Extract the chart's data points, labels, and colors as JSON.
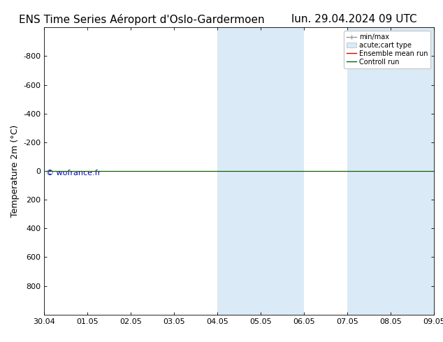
{
  "title_left": "ENS Time Series Aéroport d'Oslo-Gardermoen",
  "title_right": "lun. 29.04.2024 09 UTC",
  "ylabel": "Temperature 2m (°C)",
  "watermark": "© wofrance.fr",
  "xtick_labels": [
    "30.04",
    "01.05",
    "02.05",
    "03.05",
    "04.05",
    "05.05",
    "06.05",
    "07.05",
    "08.05",
    "09.05"
  ],
  "ylim": [
    -1000,
    1000
  ],
  "yticks": [
    -800,
    -600,
    -400,
    -200,
    0,
    200,
    400,
    600,
    800
  ],
  "shaded_bands": [
    {
      "xstart": 4.0,
      "xend": 5.0,
      "color": "#daeaf6"
    },
    {
      "xstart": 5.0,
      "xend": 6.0,
      "color": "#daeaf6"
    },
    {
      "xstart": 7.0,
      "xend": 8.0,
      "color": "#daeaf6"
    },
    {
      "xstart": 8.0,
      "xend": 9.0,
      "color": "#daeaf6"
    }
  ],
  "horizontal_line_y": 0,
  "ensemble_mean_color": "#dd0000",
  "control_run_color": "#006600",
  "minmax_color": "#999999",
  "background_color": "#ffffff",
  "plot_bg_color": "#ffffff",
  "border_color": "#000000",
  "legend_entries": [
    "min/max",
    "acute;cart type",
    "Ensemble mean run",
    "Controll run"
  ],
  "watermark_color": "#0000bb",
  "title_fontsize": 11,
  "tick_fontsize": 8,
  "ylabel_fontsize": 9,
  "watermark_fontsize": 8
}
